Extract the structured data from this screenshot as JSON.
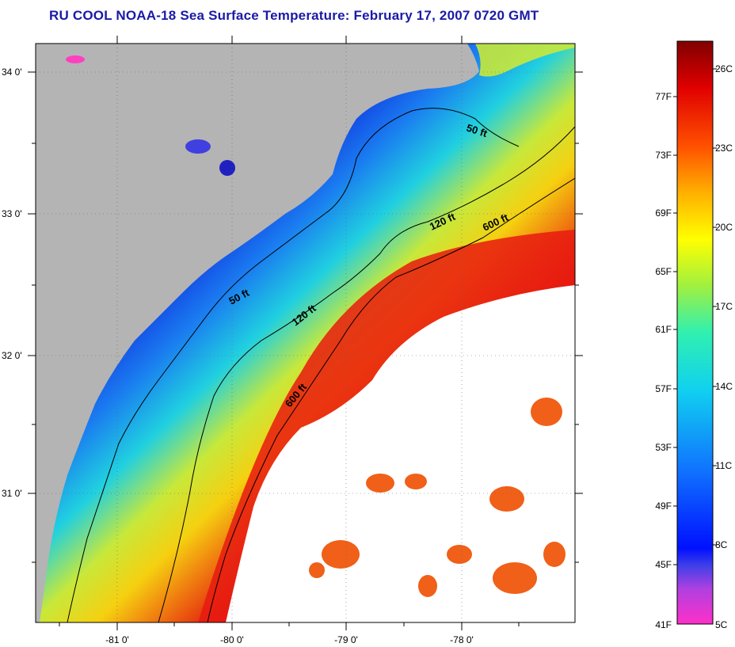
{
  "title": "RU COOL  NOAA-18  Sea Surface Temperature:  February 17, 2007 0720 GMT",
  "map": {
    "lat_labels": [
      {
        "lat": 34,
        "text": "34 0'"
      },
      {
        "lat": 33,
        "text": "33 0'"
      },
      {
        "lat": 32,
        "text": "32 0'"
      },
      {
        "lat": 31,
        "text": "31 0'"
      }
    ],
    "lon_labels": [
      {
        "lon": -81,
        "text": "-81 0'"
      },
      {
        "lon": -80,
        "text": "-80 0'"
      },
      {
        "lon": -79,
        "text": "-79 0'"
      },
      {
        "lon": -78,
        "text": "-78 0'"
      }
    ],
    "contour_labels": [
      "50 ft",
      "50 ft",
      "120 ft",
      "120 ft",
      "600 ft",
      "600 ft"
    ],
    "colors": {
      "land": "#b4b4b4",
      "cloud": "#ffffff",
      "contour": "#000000"
    }
  },
  "colorbar": {
    "fahrenheit": [
      "77F",
      "73F",
      "69F",
      "65F",
      "61F",
      "57F",
      "53F",
      "49F",
      "45F",
      "41F"
    ],
    "celsius": [
      "26C",
      "23C",
      "20C",
      "17C",
      "14C",
      "11C",
      "8C",
      "5C"
    ]
  }
}
